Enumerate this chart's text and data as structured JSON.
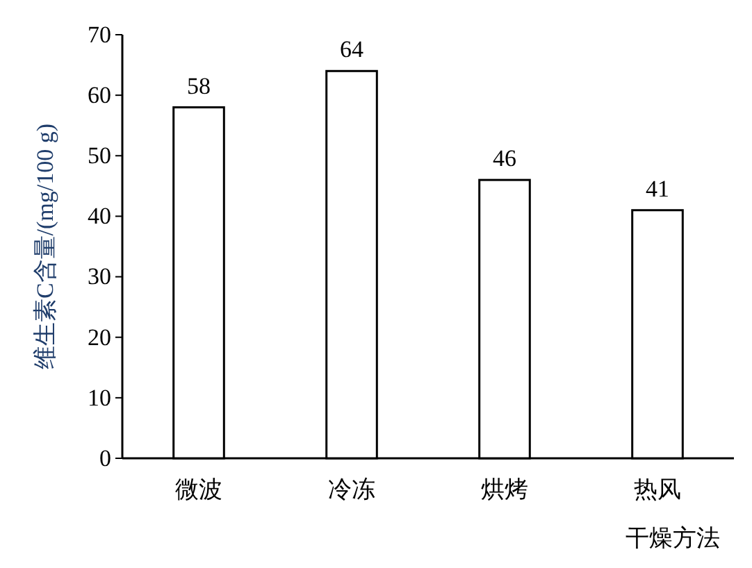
{
  "chart_data": {
    "type": "bar",
    "xlabel": "干燥方法",
    "ylabel": "维生素C含量/(mg/100 g)",
    "categories": [
      "微波",
      "冷冻",
      "烘烤",
      "热风"
    ],
    "values": [
      58,
      64,
      46,
      41
    ],
    "color": "#ffffff",
    "ylim": [
      0,
      70
    ],
    "yticks": [
      0,
      10,
      20,
      30,
      40,
      50,
      60,
      70
    ],
    "data_labels": true,
    "grid": false
  }
}
